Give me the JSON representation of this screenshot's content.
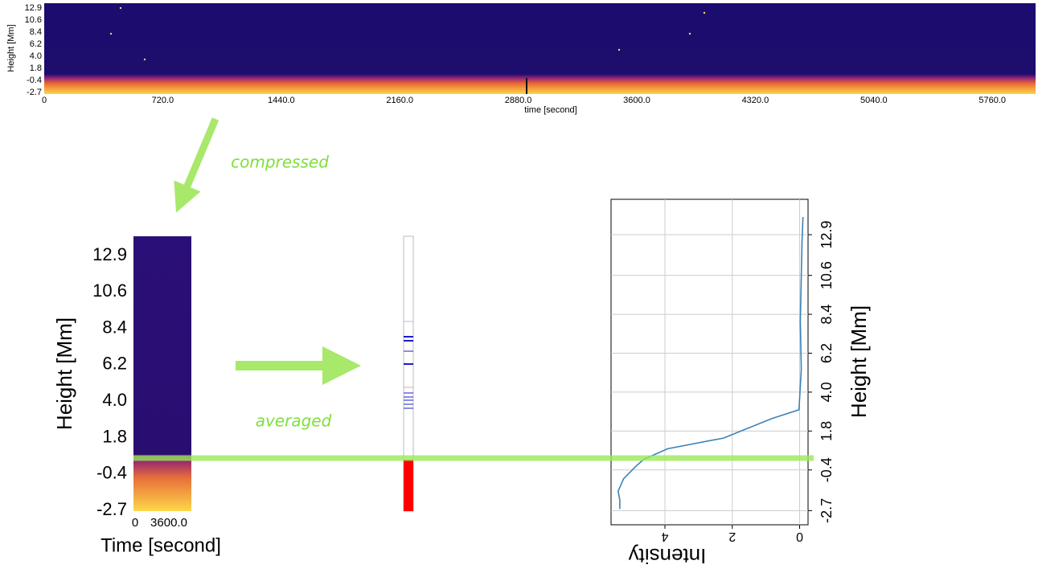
{
  "top_panel": {
    "ylabel": "Height [Mm]",
    "yticks": [
      "12.9",
      "10.6",
      "8.4",
      "6.2",
      "4.0",
      "1.8",
      "-0.4",
      "-2.7"
    ],
    "xlabel": "time [second]",
    "xticks": [
      "0",
      "720.0",
      "1440.0",
      "2160.0",
      "2880.0",
      "3600.0",
      "4320.0",
      "5040.0",
      "5760.0"
    ]
  },
  "arrows": {
    "compressed": "compressed",
    "averaged": "averaged"
  },
  "compressed_panel": {
    "ylabel": "Height [Mm]",
    "yticks": [
      "12.9",
      "10.6",
      "8.4",
      "6.2",
      "4.0",
      "1.8",
      "-0.4",
      "-2.7"
    ],
    "xlabel": "Time [second]",
    "xticks": [
      "0",
      "3600.0"
    ]
  },
  "profile_panel": {
    "xlabel": "Intensity",
    "ylabel": "Height [Mm]",
    "xlim": [
      5.6,
      -0.25
    ],
    "ylim": [
      -3.5,
      14.9
    ],
    "xticks": [
      0,
      2,
      4
    ],
    "yticks": [
      {
        "value": -2.7,
        "label": "-2.7"
      },
      {
        "value": -0.4,
        "label": "-0.4"
      },
      1.8,
      {
        "value": 4,
        "label": "4.0"
      },
      6.2,
      8.4,
      10.6,
      12.9
    ],
    "height": [
      13.9,
      12.5,
      8.0,
      5.3,
      3.0,
      2.5,
      1.4,
      0.8,
      0.2,
      -0.2,
      -0.9,
      -1.6,
      -2.1,
      -2.6
    ],
    "intensity": [
      -0.1,
      -0.07,
      -0.02,
      -0.05,
      0.02,
      0.83,
      2.26,
      3.92,
      4.63,
      4.87,
      5.23,
      5.39,
      5.34,
      5.34
    ],
    "color": "#3b82b8"
  }
}
